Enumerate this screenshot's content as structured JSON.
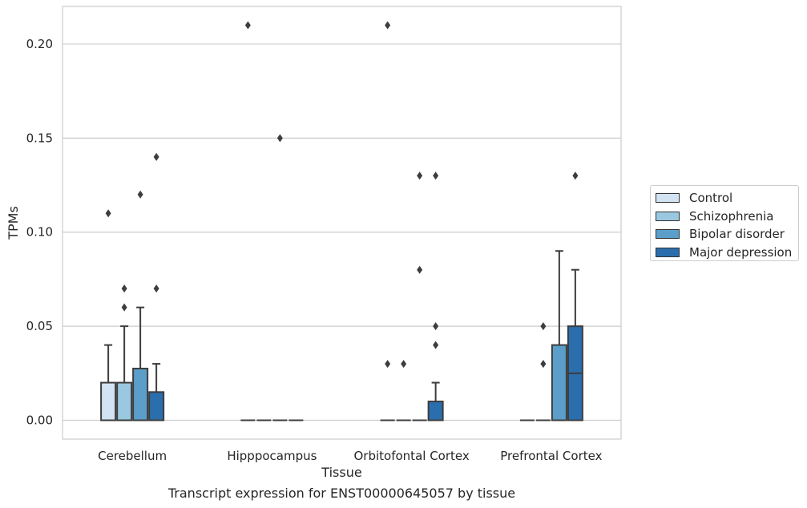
{
  "caption": "Transcript expression for ENST00000645057 by tissue",
  "legend": {
    "items": [
      {
        "label": "Control",
        "color": "#d2e3f3"
      },
      {
        "label": "Schizophrenia",
        "color": "#9ac8e0"
      },
      {
        "label": "Bipolar disorder",
        "color": "#5a9ec9"
      },
      {
        "label": "Major depression",
        "color": "#2a6ead"
      }
    ]
  },
  "chart_data": {
    "type": "box",
    "xlabel": "Tissue",
    "ylabel": "TPMs",
    "ylim": [
      -0.01,
      0.22
    ],
    "yticks": [
      0.0,
      0.05,
      0.1,
      0.15,
      0.2
    ],
    "ytick_labels": [
      "0.00",
      "0.05",
      "0.10",
      "0.15",
      "0.20"
    ],
    "grid": "horizontal",
    "legend_position": "right",
    "categories": [
      "Cerebellum",
      "Hipppocampus",
      "Orbitofontal Cortex",
      "Prefrontal Cortex"
    ],
    "series": [
      {
        "name": "Control",
        "boxes": [
          {
            "q1": 0,
            "median": 0,
            "q3": 0.02,
            "whisker_low": 0,
            "whisker_high": 0.04,
            "outliers": [
              0.11
            ]
          },
          {
            "q1": 0,
            "median": 0,
            "q3": 0,
            "whisker_low": 0,
            "whisker_high": 0,
            "outliers": [
              0.21
            ]
          },
          {
            "q1": 0,
            "median": 0,
            "q3": 0,
            "whisker_low": 0,
            "whisker_high": 0,
            "outliers": [
              0.03,
              0.21
            ]
          },
          {
            "q1": 0,
            "median": 0,
            "q3": 0,
            "whisker_low": 0,
            "whisker_high": 0,
            "outliers": []
          }
        ]
      },
      {
        "name": "Schizophrenia",
        "boxes": [
          {
            "q1": 0,
            "median": 0,
            "q3": 0.02,
            "whisker_low": 0,
            "whisker_high": 0.05,
            "outliers": [
              0.06,
              0.07
            ]
          },
          {
            "q1": 0,
            "median": 0,
            "q3": 0,
            "whisker_low": 0,
            "whisker_high": 0,
            "outliers": []
          },
          {
            "q1": 0,
            "median": 0,
            "q3": 0,
            "whisker_low": 0,
            "whisker_high": 0,
            "outliers": [
              0.03
            ]
          },
          {
            "q1": 0,
            "median": 0,
            "q3": 0,
            "whisker_low": 0,
            "whisker_high": 0,
            "outliers": [
              0.03,
              0.05
            ]
          }
        ]
      },
      {
        "name": "Bipolar disorder",
        "boxes": [
          {
            "q1": 0,
            "median": 0,
            "q3": 0.0275,
            "whisker_low": 0,
            "whisker_high": 0.06,
            "outliers": [
              0.12
            ]
          },
          {
            "q1": 0,
            "median": 0,
            "q3": 0,
            "whisker_low": 0,
            "whisker_high": 0,
            "outliers": [
              0.15
            ]
          },
          {
            "q1": 0,
            "median": 0,
            "q3": 0,
            "whisker_low": 0,
            "whisker_high": 0,
            "outliers": [
              0.08,
              0.13
            ]
          },
          {
            "q1": 0,
            "median": 0,
            "q3": 0.04,
            "whisker_low": 0,
            "whisker_high": 0.09,
            "outliers": []
          }
        ]
      },
      {
        "name": "Major depression",
        "boxes": [
          {
            "q1": 0,
            "median": 0,
            "q3": 0.015,
            "whisker_low": 0,
            "whisker_high": 0.03,
            "outliers": [
              0.07,
              0.14
            ]
          },
          {
            "q1": 0,
            "median": 0,
            "q3": 0,
            "whisker_low": 0,
            "whisker_high": 0,
            "outliers": []
          },
          {
            "q1": 0,
            "median": 0,
            "q3": 0.01,
            "whisker_low": 0,
            "whisker_high": 0.02,
            "outliers": [
              0.04,
              0.05,
              0.13
            ]
          },
          {
            "q1": 0,
            "median": 0.025,
            "q3": 0.05,
            "whisker_low": 0,
            "whisker_high": 0.08,
            "outliers": [
              0.13
            ]
          }
        ]
      }
    ]
  }
}
